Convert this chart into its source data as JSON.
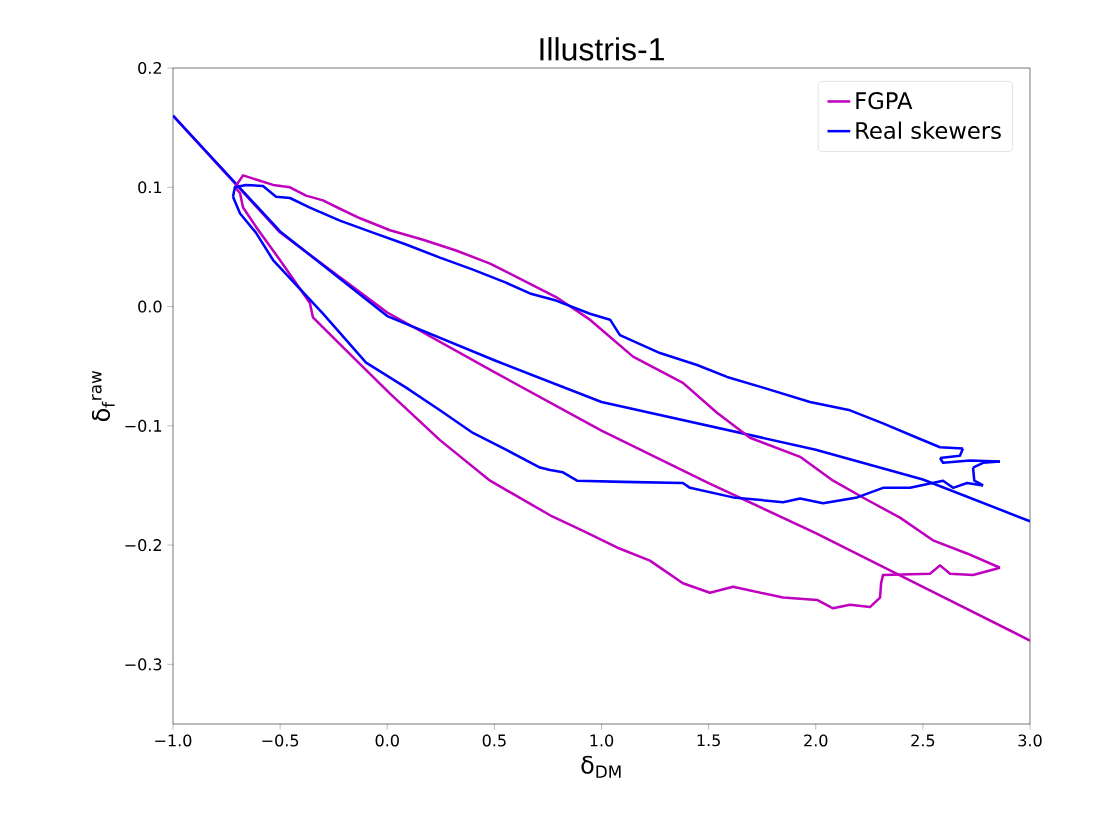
{
  "chart_data": {
    "type": "line",
    "title": "Illustris-1",
    "xlabel": "δ$_{DM}$",
    "ylabel": "δ$_{f}$$^{raw}$",
    "xlim": [
      -1,
      3
    ],
    "ylim": [
      -0.35,
      0.2
    ],
    "xticks": [
      {
        "value": -1,
        "label": "−1.0"
      },
      {
        "value": -0.5,
        "label": "−0.5"
      },
      {
        "value": 0,
        "label": "0.0"
      },
      {
        "value": 0.5,
        "label": "0.5"
      },
      {
        "value": 1,
        "label": "1.0"
      },
      {
        "value": 1.5,
        "label": "1.5"
      },
      {
        "value": 2,
        "label": "2.0"
      },
      {
        "value": 2.5,
        "label": "2.5"
      },
      {
        "value": 3,
        "label": "3.0"
      }
    ],
    "yticks": [
      {
        "value": -0.3,
        "label": "−0.3"
      },
      {
        "value": -0.2,
        "label": "−0.2"
      },
      {
        "value": -0.1,
        "label": "−0.1"
      },
      {
        "value": 0,
        "label": "0.0"
      },
      {
        "value": 0.1,
        "label": "0.1"
      },
      {
        "value": 0.2,
        "label": "0.2"
      }
    ],
    "grid": false,
    "legend": "top right",
    "marker": "none",
    "line_style": "solid",
    "series": [
      {
        "name": "FGPA",
        "color": "#bf00bf",
        "x": [
          -1,
          -0.5,
          0,
          0.5,
          1,
          1.5,
          2,
          2.5,
          3
        ],
        "values": [
          0.16,
          0.062,
          -0.005,
          -0.055,
          -0.104,
          -0.148,
          -0.19,
          -0.235,
          -0.28
        ]
      },
      {
        "name": "Real skewers",
        "color": "#0000ff",
        "x": [
          -1,
          -0.5,
          0,
          0.5,
          1,
          1.5,
          2,
          2.5,
          3
        ],
        "values": [
          0.16,
          0.063,
          -0.008,
          -0.045,
          -0.08,
          -0.1,
          -0.12,
          -0.145,
          -0.18
        ]
      },
      {
        "color": "#bf00bf",
        "x": [
          -0.711,
          -0.673,
          -0.533,
          -0.454,
          -0.379,
          -0.3,
          -0.221,
          -0.127,
          0.013,
          0.167,
          0.321,
          0.48,
          0.634,
          0.788,
          0.946,
          1.147,
          1.38,
          1.539,
          1.693,
          1.927,
          2.081,
          2.239,
          2.393,
          2.547,
          2.706,
          2.86
        ],
        "values": [
          0.1,
          0.11,
          0.102,
          0.1,
          0.093,
          0.089,
          0.082,
          0.074,
          0.064,
          0.056,
          0.047,
          0.036,
          0.022,
          0.008,
          -0.011,
          -0.042,
          -0.064,
          -0.089,
          -0.11,
          -0.126,
          -0.146,
          -0.162,
          -0.177,
          -0.196,
          -0.207,
          -0.219
        ]
      },
      {
        "color": "#bf00bf",
        "x": [
          -0.711,
          -0.687,
          -0.673,
          -0.613,
          -0.501,
          -0.361,
          -0.347,
          -0.146,
          0.013,
          0.246,
          0.48,
          0.76,
          0.914,
          1.072,
          1.226,
          1.38,
          1.506,
          1.614,
          1.847,
          2.006,
          2.081,
          2.16,
          2.253,
          2.3,
          2.305,
          2.314,
          2.533,
          2.58,
          2.627,
          2.734,
          2.86
        ],
        "values": [
          0.1,
          0.095,
          0.083,
          0.067,
          0.039,
          0.003,
          -0.009,
          -0.045,
          -0.073,
          -0.112,
          -0.146,
          -0.175,
          -0.188,
          -0.202,
          -0.213,
          -0.232,
          -0.24,
          -0.235,
          -0.244,
          -0.246,
          -0.253,
          -0.25,
          -0.252,
          -0.244,
          -0.232,
          -0.225,
          -0.224,
          -0.217,
          -0.224,
          -0.225,
          -0.219
        ]
      },
      {
        "color": "#0000ff",
        "x": [
          -0.72,
          -0.711,
          -0.659,
          -0.58,
          -0.519,
          -0.454,
          -0.361,
          -0.221,
          -0.067,
          0.088,
          0.246,
          0.4,
          0.554,
          0.666,
          0.788,
          0.946,
          1.04,
          1.086,
          1.273,
          1.446,
          1.586,
          1.754,
          1.973,
          2.16,
          2.314,
          2.473,
          2.58,
          2.687
        ],
        "values": [
          0.092,
          0.1,
          0.102,
          0.101,
          0.092,
          0.091,
          0.083,
          0.072,
          0.062,
          0.052,
          0.041,
          0.031,
          0.02,
          0.011,
          0.005,
          -0.006,
          -0.011,
          -0.024,
          -0.039,
          -0.049,
          -0.059,
          -0.068,
          -0.08,
          -0.087,
          -0.098,
          -0.11,
          -0.118,
          -0.119
        ]
      },
      {
        "color": "#0000ff",
        "x": [
          2.58,
          2.673,
          2.687
        ],
        "values": [
          -0.127,
          -0.125,
          -0.119
        ]
      },
      {
        "color": "#0000ff",
        "x": [
          2.58,
          2.594,
          2.72,
          2.86
        ],
        "values": [
          -0.127,
          -0.131,
          -0.129,
          -0.13
        ]
      },
      {
        "color": "#0000ff",
        "x": [
          2.734,
          2.781,
          2.86
        ],
        "values": [
          -0.135,
          -0.131,
          -0.13
        ]
      },
      {
        "color": "#0000ff",
        "x": [
          2.734,
          2.74,
          2.781
        ],
        "values": [
          -0.135,
          -0.146,
          -0.15
        ]
      },
      {
        "color": "#0000ff",
        "x": [
          -0.72,
          -0.687,
          -0.613,
          -0.533,
          -0.3,
          -0.099,
          0.088,
          0.246,
          0.4,
          0.554,
          0.713,
          0.76,
          0.82,
          0.886,
          1.1,
          1.38,
          1.413,
          1.614,
          1.847,
          1.927,
          2.034,
          2.193,
          2.314,
          2.44,
          2.594,
          2.641,
          2.706,
          2.781
        ],
        "values": [
          0.092,
          0.078,
          0.062,
          0.039,
          -0.006,
          -0.047,
          -0.068,
          -0.087,
          -0.106,
          -0.12,
          -0.135,
          -0.137,
          -0.139,
          -0.146,
          -0.147,
          -0.148,
          -0.152,
          -0.16,
          -0.164,
          -0.161,
          -0.165,
          -0.16,
          -0.152,
          -0.152,
          -0.146,
          -0.152,
          -0.148,
          -0.15
        ]
      }
    ]
  }
}
